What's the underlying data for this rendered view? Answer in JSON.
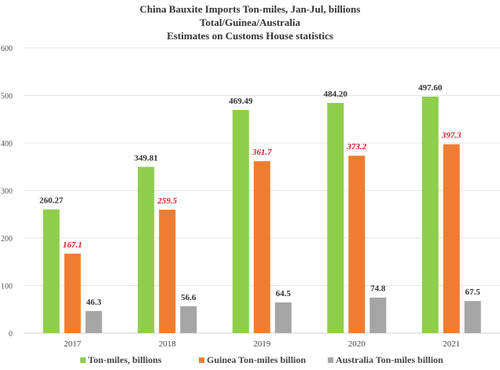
{
  "chart_data": {
    "type": "bar",
    "title": [
      "China Bauxite Imports Ton-miles, Jan-Jul, billions",
      "Total/Guinea/Australia",
      "Estimates on Customs House statistics"
    ],
    "categories": [
      "2017",
      "2018",
      "2019",
      "2020",
      "2021"
    ],
    "ylim": [
      0,
      600
    ],
    "yticks": [
      0,
      100,
      200,
      300,
      400,
      500,
      600
    ],
    "grid": true,
    "legend_position": "bottom",
    "series": [
      {
        "name": "Ton-miles, billions",
        "color": "#8fce4a",
        "values": [
          260.27,
          349.81,
          469.49,
          484.2,
          497.6
        ],
        "labels": [
          "260.27",
          "349.81",
          "469.49",
          "484.20",
          "497.60"
        ],
        "label_color": "#333333"
      },
      {
        "name": "Guinea Ton-miles billion",
        "color": "#ee7d31",
        "values": [
          167.1,
          259.5,
          361.7,
          373.2,
          397.3
        ],
        "labels": [
          "167.1",
          "259.5",
          "361.7",
          "373.2",
          "397.3"
        ],
        "label_color": "#d0202a"
      },
      {
        "name": "Australia Ton-miles billion",
        "color": "#a5a5a5",
        "values": [
          46.3,
          56.6,
          64.5,
          74.8,
          67.5
        ],
        "labels": [
          "46.3",
          "56.6",
          "64.5",
          "74.8",
          "67.5"
        ],
        "label_color": "#333333"
      }
    ]
  }
}
